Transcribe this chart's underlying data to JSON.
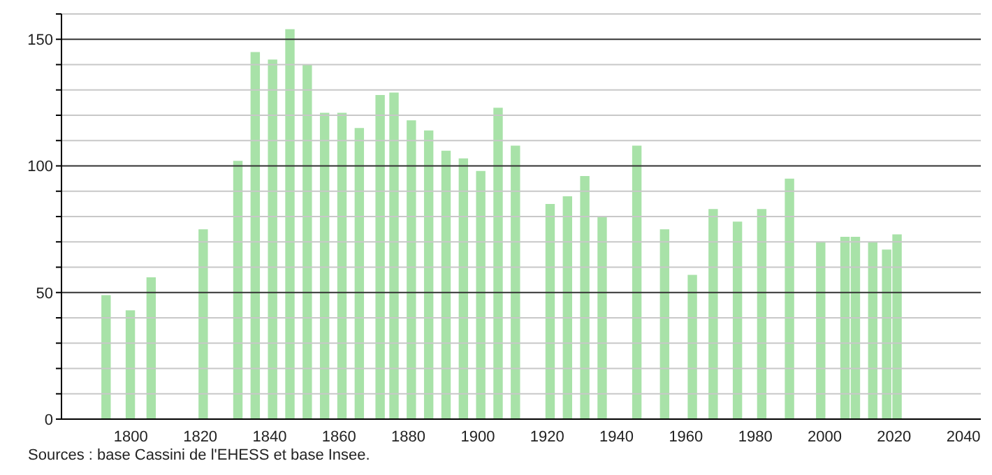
{
  "chart_data": {
    "type": "bar",
    "x": [
      1793,
      1800,
      1806,
      1821,
      1831,
      1836,
      1841,
      1846,
      1851,
      1856,
      1861,
      1866,
      1872,
      1876,
      1881,
      1886,
      1891,
      1896,
      1901,
      1906,
      1911,
      1921,
      1926,
      1931,
      1936,
      1946,
      1954,
      1962,
      1968,
      1975,
      1982,
      1990,
      1999,
      2006,
      2009,
      2014,
      2018,
      2021
    ],
    "values": [
      49,
      43,
      56,
      75,
      102,
      145,
      142,
      154,
      140,
      121,
      121,
      115,
      128,
      129,
      118,
      114,
      106,
      103,
      98,
      123,
      108,
      85,
      88,
      96,
      80,
      108,
      75,
      57,
      83,
      78,
      83,
      95,
      70,
      72,
      72,
      70,
      67,
      73
    ],
    "color": "#a8e2a8",
    "xlim": [
      1780,
      2045
    ],
    "xticks": [
      1800,
      1820,
      1840,
      1860,
      1880,
      1900,
      1920,
      1940,
      1960,
      1980,
      2000,
      2020,
      2040
    ],
    "ylim": [
      0,
      160
    ],
    "yticks": [
      0,
      {
        "value": 10,
        "label": null
      },
      {
        "value": 20,
        "label": null
      },
      {
        "value": 30,
        "label": null
      },
      {
        "value": 40,
        "label": null
      },
      50,
      {
        "value": 60,
        "label": null
      },
      {
        "value": 70,
        "label": null
      },
      {
        "value": 80,
        "label": null
      },
      {
        "value": 90,
        "label": null
      },
      100,
      {
        "value": 110,
        "label": null
      },
      {
        "value": 120,
        "label": null
      },
      {
        "value": 130,
        "label": null
      },
      {
        "value": 140,
        "label": null
      },
      150,
      {
        "value": 160,
        "label": null
      }
    ],
    "grid": "y",
    "annotations": [
      "Sources : base Cassini de l'EHESS et base Insee."
    ]
  }
}
